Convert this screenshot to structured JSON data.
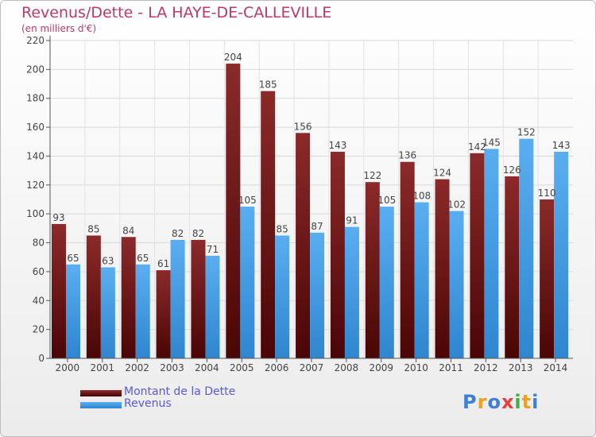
{
  "title": "Revenus/Dette - LA HAYE-DE-CALLEVILLE",
  "subtitle": "(en milliers d'€)",
  "logo": {
    "text": "Proxiti",
    "letters": [
      {
        "ch": "P",
        "color": "#3f7fd8"
      },
      {
        "ch": "r",
        "color": "#f0a020"
      },
      {
        "ch": "o",
        "color": "#3f7fd8"
      },
      {
        "ch": "x",
        "color": "#e84040"
      },
      {
        "ch": "i",
        "color": "#40b040"
      },
      {
        "ch": "t",
        "color": "#f0a020"
      },
      {
        "ch": "i",
        "color": "#3f7fd8"
      }
    ]
  },
  "chart_data": {
    "type": "bar",
    "categories": [
      "2000",
      "2001",
      "2002",
      "2003",
      "2004",
      "2005",
      "2006",
      "2007",
      "2008",
      "2009",
      "2010",
      "2011",
      "2012",
      "2013",
      "2014"
    ],
    "series": [
      {
        "name": "Montant de la Dette",
        "values": [
          93,
          85,
          84,
          61,
          82,
          204,
          185,
          156,
          143,
          122,
          136,
          124,
          142,
          126,
          110
        ],
        "color_top": "#8b2a2a",
        "color_bottom": "#4a0505"
      },
      {
        "name": "Revenus",
        "values": [
          65,
          63,
          65,
          82,
          71,
          105,
          85,
          87,
          91,
          105,
          108,
          102,
          145,
          152,
          143
        ],
        "color_top": "#5aaef0",
        "color_bottom": "#2f86cf"
      }
    ],
    "ylim": [
      0,
      220
    ],
    "yticks": [
      0,
      20,
      40,
      60,
      80,
      100,
      120,
      140,
      160,
      180,
      200,
      220
    ],
    "grid": true,
    "legend_position": "bottom-left"
  }
}
